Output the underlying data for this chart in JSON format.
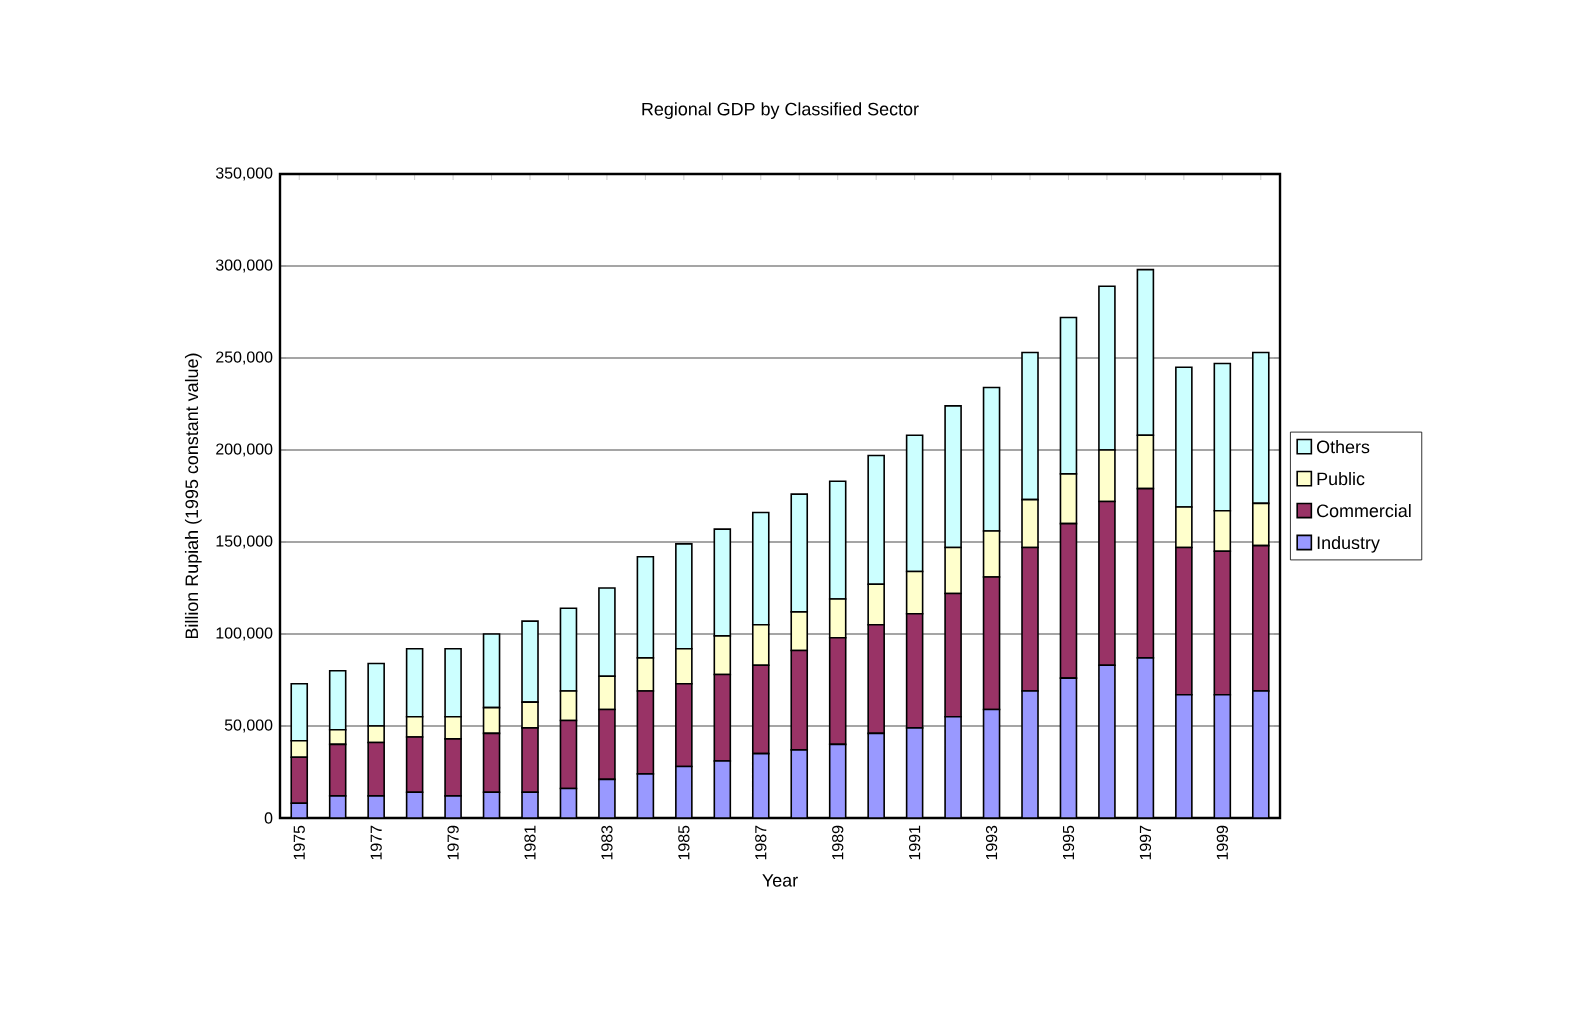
{
  "chart_data": {
    "type": "bar",
    "title": "Regional GDP by Classified Sector",
    "xlabel": "Year",
    "ylabel": "Billion Rupiah (1995 constant value)",
    "categories": [
      "1975",
      null,
      "1977",
      null,
      "1979",
      null,
      "1981",
      null,
      "1983",
      null,
      "1985",
      null,
      "1987",
      null,
      "1989",
      null,
      "1991",
      null,
      "1993",
      null,
      "1995",
      null,
      "1997",
      null,
      "1999",
      null
    ],
    "stacked": true,
    "grid": "y",
    "legend": "right",
    "ylim": [
      0,
      350000
    ],
    "yticks": [
      {
        "value": 0,
        "label": "0"
      },
      {
        "value": 50000,
        "label": "50,000"
      },
      {
        "value": 100000,
        "label": "100,000"
      },
      {
        "value": 150000,
        "label": "150,000"
      },
      {
        "value": 200000,
        "label": "200,000"
      },
      {
        "value": 250000,
        "label": "250,000"
      },
      {
        "value": 300000,
        "label": "300,000"
      },
      {
        "value": 350000,
        "label": "350,000"
      }
    ],
    "series": [
      {
        "name": "Industry",
        "color": "#9999ff",
        "values": [
          8000,
          12000,
          12000,
          14000,
          12000,
          14000,
          14000,
          16000,
          21000,
          24000,
          28000,
          31000,
          35000,
          37000,
          40000,
          46000,
          49000,
          55000,
          59000,
          69000,
          76000,
          83000,
          87000,
          67000,
          67000,
          69000
        ]
      },
      {
        "name": "Commercial",
        "color": "#993366",
        "values": [
          25000,
          28000,
          29000,
          30000,
          31000,
          32000,
          35000,
          37000,
          38000,
          45000,
          45000,
          47000,
          48000,
          54000,
          58000,
          59000,
          62000,
          67000,
          72000,
          78000,
          84000,
          89000,
          92000,
          80000,
          78000,
          79000
        ]
      },
      {
        "name": "Public",
        "color": "#ffffcc",
        "values": [
          9000,
          8000,
          9000,
          11000,
          12000,
          14000,
          14000,
          16000,
          18000,
          18000,
          19000,
          21000,
          22000,
          21000,
          21000,
          22000,
          23000,
          25000,
          25000,
          26000,
          27000,
          28000,
          29000,
          22000,
          22000,
          23000
        ]
      },
      {
        "name": "Others",
        "color": "#ccffff",
        "values": [
          31000,
          32000,
          34000,
          37000,
          37000,
          40000,
          44000,
          45000,
          48000,
          55000,
          57000,
          58000,
          61000,
          64000,
          64000,
          70000,
          74000,
          77000,
          78000,
          80000,
          85000,
          89000,
          90000,
          76000,
          80000,
          82000
        ]
      }
    ]
  }
}
